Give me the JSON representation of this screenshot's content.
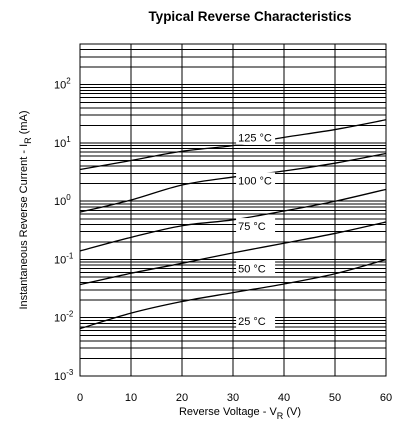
{
  "chart_data": {
    "type": "line",
    "title": "Typical Reverse Characteristics",
    "xlabel": {
      "main": "Reverse Voltage - V",
      "sub": "R",
      "suffix": " (V)"
    },
    "ylabel": {
      "main": "Instantaneous Reverse Current - I",
      "sub": "R",
      "suffix": " (mA)"
    },
    "x_scale": "linear",
    "y_scale": "log",
    "xlim": [
      0,
      60
    ],
    "ylim": [
      0.001,
      500
    ],
    "grid": true,
    "x_ticks": [
      {
        "value": 0,
        "label": "0"
      },
      {
        "value": 10,
        "label": "10"
      },
      {
        "value": 20,
        "label": "20"
      },
      {
        "value": 30,
        "label": "30"
      },
      {
        "value": 40,
        "label": "40"
      },
      {
        "value": 50,
        "label": "50"
      },
      {
        "value": 60,
        "label": "60"
      }
    ],
    "y_ticks": [
      {
        "value": 100,
        "base": "10",
        "exp": "2"
      },
      {
        "value": 10,
        "base": "10",
        "exp": "1"
      },
      {
        "value": 1,
        "base": "10",
        "exp": "0"
      },
      {
        "value": 0.1,
        "base": "10",
        "exp": "-1"
      },
      {
        "value": 0.01,
        "base": "10",
        "exp": "-2"
      },
      {
        "value": 0.001,
        "base": "10",
        "exp": "-3"
      }
    ],
    "series": [
      {
        "name": "125 °C",
        "x": [
          0,
          10,
          20,
          30,
          40,
          50,
          60
        ],
        "y": [
          3.5,
          5.0,
          7.2,
          9.0,
          12.5,
          17.0,
          25.0
        ],
        "label_x": 30.8,
        "label_y": 10.5
      },
      {
        "name": "100 °C",
        "x": [
          0,
          10,
          20,
          30,
          40,
          50,
          60
        ],
        "y": [
          0.65,
          1.05,
          1.9,
          2.6,
          3.3,
          4.5,
          6.6
        ],
        "label_x": 30.8,
        "label_y": 1.95
      },
      {
        "name": "75 °C",
        "x": [
          0,
          10,
          20,
          30,
          40,
          50,
          60
        ],
        "y": [
          0.14,
          0.24,
          0.38,
          0.48,
          0.68,
          1.0,
          1.6
        ],
        "label_x": 30.8,
        "label_y": 0.32
      },
      {
        "name": "50 °C",
        "x": [
          0,
          10,
          20,
          30,
          40,
          50,
          60
        ],
        "y": [
          0.037,
          0.058,
          0.086,
          0.13,
          0.19,
          0.28,
          0.44
        ],
        "label_x": 30.8,
        "label_y": 0.06
      },
      {
        "name": "25 °C",
        "x": [
          0,
          10,
          20,
          30,
          40,
          50,
          60
        ],
        "y": [
          0.0065,
          0.012,
          0.019,
          0.027,
          0.038,
          0.057,
          0.1
        ],
        "label_x": 30.8,
        "label_y": 0.0075
      }
    ]
  }
}
